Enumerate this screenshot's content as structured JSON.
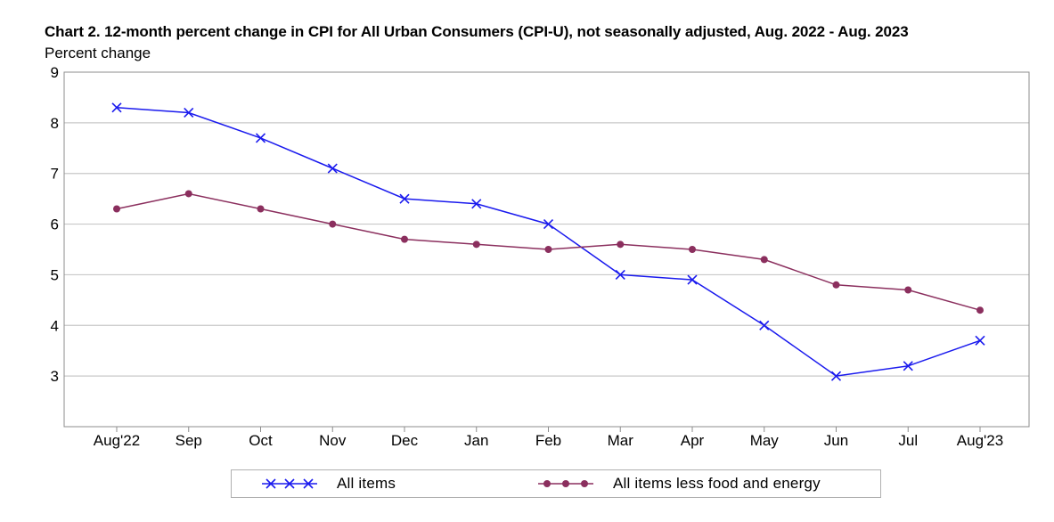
{
  "chart_data": {
    "type": "line",
    "title": "Chart 2. 12-month percent change in CPI for All Urban Consumers (CPI-U), not seasonally adjusted, Aug. 2022 - Aug. 2023",
    "ylabel": "Percent change",
    "xlabel": "",
    "categories": [
      "Aug'22",
      "Sep",
      "Oct",
      "Nov",
      "Dec",
      "Jan",
      "Feb",
      "Mar",
      "Apr",
      "May",
      "Jun",
      "Jul",
      "Aug'23"
    ],
    "ylim": [
      2,
      9
    ],
    "yticks": [
      3,
      4,
      5,
      6,
      7,
      8,
      9
    ],
    "grid": true,
    "legend_position": "bottom",
    "series": [
      {
        "name": "All items",
        "marker": "x",
        "color": "#1a1aee",
        "values": [
          8.3,
          8.2,
          7.7,
          7.1,
          6.5,
          6.4,
          6.0,
          5.0,
          4.9,
          4.0,
          3.0,
          3.2,
          3.7
        ]
      },
      {
        "name": "All items less food and energy",
        "marker": "circle",
        "color": "#8b2f5e",
        "values": [
          6.3,
          6.6,
          6.3,
          6.0,
          5.7,
          5.6,
          5.5,
          5.6,
          5.5,
          5.3,
          4.8,
          4.7,
          4.3
        ]
      }
    ]
  }
}
